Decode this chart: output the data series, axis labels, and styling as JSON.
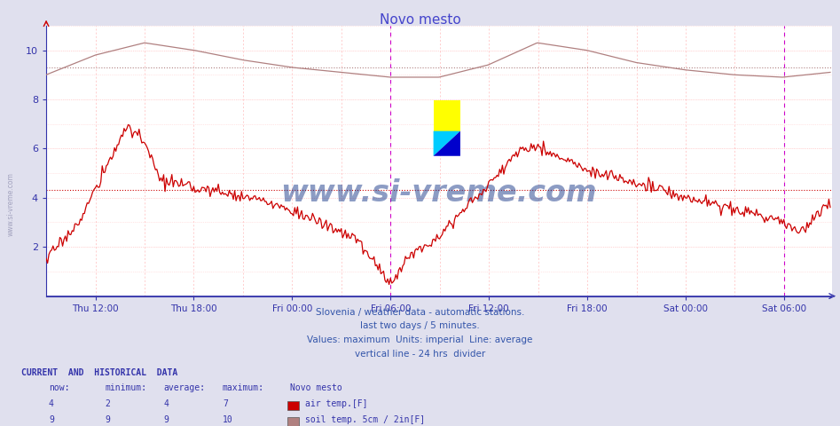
{
  "title": "Novo mesto",
  "title_color": "#4444cc",
  "bg_color": "#e0e0ee",
  "plot_bg_color": "#ffffff",
  "xlabel_ticks": [
    "Thu 12:00",
    "Thu 18:00",
    "Fri 00:00",
    "Fri 06:00",
    "Fri 12:00",
    "Fri 18:00",
    "Sat 00:00",
    "Sat 06:00"
  ],
  "ylim": [
    0,
    11
  ],
  "yticks": [
    2,
    4,
    6,
    8,
    10
  ],
  "air_temp_color": "#cc0000",
  "soil_temp_color": "#b08080",
  "avg_air_temp": 4.3,
  "avg_soil_temp": 9.3,
  "divider_color": "#cc00cc",
  "text_info": [
    "Slovenia / weather data - automatic stations.",
    "last two days / 5 minutes.",
    "Values: maximum  Units: imperial  Line: average",
    "vertical line - 24 hrs  divider"
  ],
  "legend_rows": [
    {
      "now": "4",
      "min": "2",
      "avg": "4",
      "max": "7",
      "label": "air temp.[F]",
      "color": "#cc0000"
    },
    {
      "now": "9",
      "min": "9",
      "avg": "9",
      "max": "10",
      "label": "soil temp. 5cm / 2in[F]",
      "color": "#b08080"
    }
  ],
  "watermark_text": "www.si-vreme.com",
  "watermark_color": "#1a3a8a",
  "watermark_alpha": 0.5,
  "sidebar_text": "www.si-vreme.com",
  "sidebar_color": "#888899"
}
